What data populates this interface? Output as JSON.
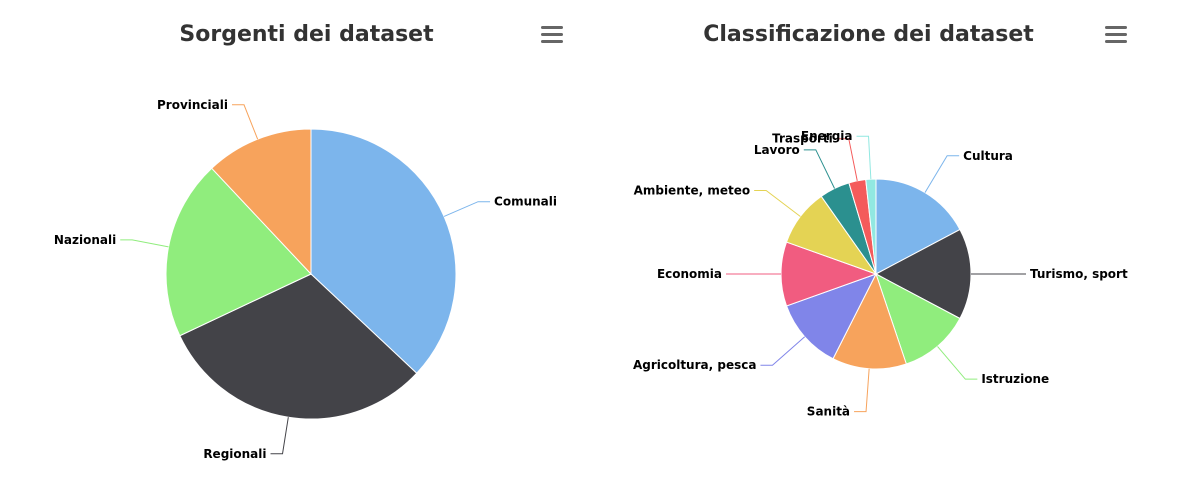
{
  "chart_data": [
    {
      "type": "pie",
      "title": "Sorgenti dei dataset",
      "categories": [
        "Comunali",
        "Regionali",
        "Nazionali",
        "Provinciali"
      ],
      "values": [
        37,
        31,
        20,
        12
      ],
      "colors": [
        "#7cb5ec",
        "#434348",
        "#90ed7d",
        "#f7a35c"
      ]
    },
    {
      "type": "pie",
      "title": "Classificazione dei dataset",
      "categories": [
        "Cultura",
        "Turismo, sport",
        "Istruzione",
        "Sanità",
        "Agricoltura, pesca",
        "Economia",
        "Ambiente, meteo",
        "Lavoro",
        "Trasporti",
        "Energia"
      ],
      "values": [
        15,
        13.5,
        10.5,
        11,
        10.5,
        9.5,
        8.5,
        4.5,
        2.5,
        1.5
      ],
      "colors": [
        "#7cb5ec",
        "#434348",
        "#90ed7d",
        "#f7a35c",
        "#8085e9",
        "#f15c80",
        "#e4d354",
        "#2b908f",
        "#f45b5b",
        "#91e8e1"
      ]
    }
  ],
  "menu": {
    "icon": "hamburger-menu-icon"
  }
}
